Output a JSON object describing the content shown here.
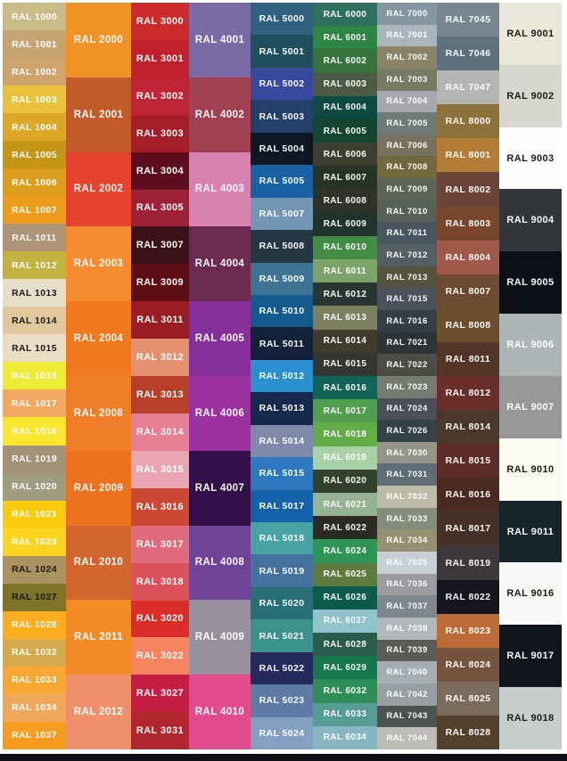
{
  "chart": {
    "footer_bar_color": "#0d0f14",
    "label_light_color": "#ffffff",
    "label_dark_color": "#1d1b16",
    "columns": [
      {
        "name": "ral-1000-series",
        "swatches": [
          {
            "code": "RAL 1000",
            "hex": "#c9bc87"
          },
          {
            "code": "RAL 1001",
            "hex": "#c7a572"
          },
          {
            "code": "RAL 1002",
            "hex": "#cda46c"
          },
          {
            "code": "RAL 1003",
            "hex": "#eac23a"
          },
          {
            "code": "RAL 1004",
            "hex": "#dda826"
          },
          {
            "code": "RAL 1005",
            "hex": "#c39715"
          },
          {
            "code": "RAL 1006",
            "hex": "#de9e1d"
          },
          {
            "code": "RAL 1007",
            "hex": "#ee9c1c"
          },
          {
            "code": "RAL 1011",
            "hex": "#ad9477"
          },
          {
            "code": "RAL 1012",
            "hex": "#c3b23f"
          },
          {
            "code": "RAL 1013",
            "hex": "#e7dec7",
            "dark_text": true
          },
          {
            "code": "RAL 1014",
            "hex": "#e0c79d",
            "dark_text": true
          },
          {
            "code": "RAL 1015",
            "hex": "#e9ddc5",
            "dark_text": true
          },
          {
            "code": "RAL 1016",
            "hex": "#ecec35"
          },
          {
            "code": "RAL 1017",
            "hex": "#f3a860"
          },
          {
            "code": "RAL 1018",
            "hex": "#f9e72f"
          },
          {
            "code": "RAL 1019",
            "hex": "#a39178"
          },
          {
            "code": "RAL 1020",
            "hex": "#a09c80"
          },
          {
            "code": "RAL 1021",
            "hex": "#fbcc0b"
          },
          {
            "code": "RAL 1023",
            "hex": "#fdd41f"
          },
          {
            "code": "RAL 1024",
            "hex": "#ab9360",
            "dark_text": true
          },
          {
            "code": "RAL 1027",
            "hex": "#7e7428",
            "dark_text": true
          },
          {
            "code": "RAL 1028",
            "hex": "#fdae20"
          },
          {
            "code": "RAL 1032",
            "hex": "#d4aa4d"
          },
          {
            "code": "RAL 1033",
            "hex": "#f7a832"
          },
          {
            "code": "RAL 1034",
            "hex": "#f1a75b"
          },
          {
            "code": "RAL 1037",
            "hex": "#f69c1f"
          }
        ]
      },
      {
        "name": "ral-2000-series",
        "swatches": [
          {
            "code": "RAL 2000",
            "hex": "#f09225"
          },
          {
            "code": "RAL 2001",
            "hex": "#c35a2a"
          },
          {
            "code": "RAL 2002",
            "hex": "#e6432e"
          },
          {
            "code": "RAL 2003",
            "hex": "#f68c2f"
          },
          {
            "code": "RAL 2004",
            "hex": "#f0781f"
          },
          {
            "code": "RAL 2008",
            "hex": "#f07d27"
          },
          {
            "code": "RAL 2009",
            "hex": "#ed7220"
          },
          {
            "code": "RAL 2010",
            "hex": "#d2662e"
          },
          {
            "code": "RAL 2011",
            "hex": "#f28b26"
          },
          {
            "code": "RAL 2012",
            "hex": "#ef906a"
          }
        ]
      },
      {
        "name": "ral-3000-series",
        "swatches": [
          {
            "code": "RAL 3000",
            "hex": "#cc2a2c"
          },
          {
            "code": "RAL 3001",
            "hex": "#c1202d"
          },
          {
            "code": "RAL 3002",
            "hex": "#c12434"
          },
          {
            "code": "RAL 3003",
            "hex": "#a41f28"
          },
          {
            "code": "RAL 3004",
            "hex": "#5d0e1c"
          },
          {
            "code": "RAL 3005",
            "hex": "#9e2136"
          },
          {
            "code": "RAL 3007",
            "hex": "#3b121a"
          },
          {
            "code": "RAL 3009",
            "hex": "#5d0f15"
          },
          {
            "code": "RAL 3011",
            "hex": "#9c1c24"
          },
          {
            "code": "RAL 3012",
            "hex": "#e5906f"
          },
          {
            "code": "RAL 3013",
            "hex": "#b8402a"
          },
          {
            "code": "RAL 3014",
            "hex": "#e67f93"
          },
          {
            "code": "RAL 3015",
            "hex": "#e9a6b2"
          },
          {
            "code": "RAL 3016",
            "hex": "#cb4832"
          },
          {
            "code": "RAL 3017",
            "hex": "#e26a7d"
          },
          {
            "code": "RAL 3018",
            "hex": "#dd5158"
          },
          {
            "code": "RAL 3020",
            "hex": "#da2c28"
          },
          {
            "code": "RAL 3022",
            "hex": "#f5845f"
          },
          {
            "code": "RAL 3027",
            "hex": "#c61e42"
          },
          {
            "code": "RAL 3031",
            "hex": "#b2262e"
          }
        ]
      },
      {
        "name": "ral-4000-series",
        "swatches": [
          {
            "code": "RAL 4001",
            "hex": "#7a6aa5"
          },
          {
            "code": "RAL 4002",
            "hex": "#a33f52"
          },
          {
            "code": "RAL 4003",
            "hex": "#d881ae"
          },
          {
            "code": "RAL 4004",
            "hex": "#6d2b52"
          },
          {
            "code": "RAL 4005",
            "hex": "#872f9a"
          },
          {
            "code": "RAL 4006",
            "hex": "#9c32a0"
          },
          {
            "code": "RAL 4007",
            "hex": "#331049"
          },
          {
            "code": "RAL 4008",
            "hex": "#6f4398"
          },
          {
            "code": "RAL 4009",
            "hex": "#97909c"
          },
          {
            "code": "RAL 4010",
            "hex": "#e24b8d"
          }
        ]
      },
      {
        "name": "ral-5000-series",
        "swatches": [
          {
            "code": "RAL 5000",
            "hex": "#30627f"
          },
          {
            "code": "RAL 5001",
            "hex": "#1f4f5c"
          },
          {
            "code": "RAL 5002",
            "hex": "#38499e"
          },
          {
            "code": "RAL 5003",
            "hex": "#23406b"
          },
          {
            "code": "RAL 5004",
            "hex": "#0e1724"
          },
          {
            "code": "RAL 5005",
            "hex": "#1a60a5"
          },
          {
            "code": "RAL 5007",
            "hex": "#7496b5"
          },
          {
            "code": "RAL 5008",
            "hex": "#243743"
          },
          {
            "code": "RAL 5009",
            "hex": "#3f7394"
          },
          {
            "code": "RAL 5010",
            "hex": "#155a8c"
          },
          {
            "code": "RAL 5011",
            "hex": "#13223a"
          },
          {
            "code": "RAL 5012",
            "hex": "#2b90cf"
          },
          {
            "code": "RAL 5013",
            "hex": "#152a4e"
          },
          {
            "code": "RAL 5014",
            "hex": "#8089ac"
          },
          {
            "code": "RAL 5015",
            "hex": "#2e78c0"
          },
          {
            "code": "RAL 5017",
            "hex": "#1562ab"
          },
          {
            "code": "RAL 5018",
            "hex": "#47a2a4"
          },
          {
            "code": "RAL 5019",
            "hex": "#44719e"
          },
          {
            "code": "RAL 5020",
            "hex": "#276e75"
          },
          {
            "code": "RAL 5021",
            "hex": "#3b938b"
          },
          {
            "code": "RAL 5022",
            "hex": "#24295e"
          },
          {
            "code": "RAL 5023",
            "hex": "#5e7ba6"
          },
          {
            "code": "RAL 5024",
            "hex": "#83a0c2"
          }
        ]
      },
      {
        "name": "ral-6000-series",
        "swatches": [
          {
            "code": "RAL 6000",
            "hex": "#2e6f5e"
          },
          {
            "code": "RAL 6001",
            "hex": "#2e8644"
          },
          {
            "code": "RAL 6002",
            "hex": "#38723d"
          },
          {
            "code": "RAL 6003",
            "hex": "#4d5a44"
          },
          {
            "code": "RAL 6004",
            "hex": "#0e4a44"
          },
          {
            "code": "RAL 6005",
            "hex": "#134531"
          },
          {
            "code": "RAL 6006",
            "hex": "#3c3e30"
          },
          {
            "code": "RAL 6007",
            "hex": "#273324"
          },
          {
            "code": "RAL 6008",
            "hex": "#31332b"
          },
          {
            "code": "RAL 6009",
            "hex": "#21342b"
          },
          {
            "code": "RAL 6010",
            "hex": "#428c44"
          },
          {
            "code": "RAL 6011",
            "hex": "#7ca36a"
          },
          {
            "code": "RAL 6012",
            "hex": "#283734"
          },
          {
            "code": "RAL 6013",
            "hex": "#7d805f"
          },
          {
            "code": "RAL 6014",
            "hex": "#3f3c2d"
          },
          {
            "code": "RAL 6015",
            "hex": "#343730"
          },
          {
            "code": "RAL 6016",
            "hex": "#116456"
          },
          {
            "code": "RAL 6017",
            "hex": "#4f9e4b"
          },
          {
            "code": "RAL 6018",
            "hex": "#62ad47"
          },
          {
            "code": "RAL 6019",
            "hex": "#a8d2a5"
          },
          {
            "code": "RAL 6020",
            "hex": "#33412f"
          },
          {
            "code": "RAL 6021",
            "hex": "#94b390"
          },
          {
            "code": "RAL 6022",
            "hex": "#2b2b23"
          },
          {
            "code": "RAL 6024",
            "hex": "#2d9555"
          },
          {
            "code": "RAL 6025",
            "hex": "#5f7c40"
          },
          {
            "code": "RAL 6026",
            "hex": "#0d5b4d"
          },
          {
            "code": "RAL 6027",
            "hex": "#8fc4ca"
          },
          {
            "code": "RAL 6028",
            "hex": "#2b5b4d"
          },
          {
            "code": "RAL 6029",
            "hex": "#16774c"
          },
          {
            "code": "RAL 6032",
            "hex": "#2f8e58"
          },
          {
            "code": "RAL 6033",
            "hex": "#569b94"
          },
          {
            "code": "RAL 6034",
            "hex": "#85b6c1"
          }
        ]
      },
      {
        "name": "ral-7000-series",
        "swatches": [
          {
            "code": "RAL 7000",
            "hex": "#8396a2"
          },
          {
            "code": "RAL 7001",
            "hex": "#abb5bd"
          },
          {
            "code": "RAL 7002",
            "hex": "#8b8367"
          },
          {
            "code": "RAL 7003",
            "hex": "#777b66"
          },
          {
            "code": "RAL 7004",
            "hex": "#a7a7af"
          },
          {
            "code": "RAL 7005",
            "hex": "#6f7b78"
          },
          {
            "code": "RAL 7006",
            "hex": "#78715e"
          },
          {
            "code": "RAL 7008",
            "hex": "#73673d"
          },
          {
            "code": "RAL 7009",
            "hex": "#5b6455"
          },
          {
            "code": "RAL 7010",
            "hex": "#566056"
          },
          {
            "code": "RAL 7011",
            "hex": "#48555e"
          },
          {
            "code": "RAL 7012",
            "hex": "#545f64"
          },
          {
            "code": "RAL 7013",
            "hex": "#55523d"
          },
          {
            "code": "RAL 7015",
            "hex": "#4b515d"
          },
          {
            "code": "RAL 7016",
            "hex": "#343e45"
          },
          {
            "code": "RAL 7021",
            "hex": "#2c3438"
          },
          {
            "code": "RAL 7022",
            "hex": "#4c4c45"
          },
          {
            "code": "RAL 7023",
            "hex": "#757b6f"
          },
          {
            "code": "RAL 7024",
            "hex": "#4c4e59"
          },
          {
            "code": "RAL 7026",
            "hex": "#344149"
          },
          {
            "code": "RAL 7030",
            "hex": "#949489"
          },
          {
            "code": "RAL 7031",
            "hex": "#5d6c75"
          },
          {
            "code": "RAL 7032",
            "hex": "#bdbba6"
          },
          {
            "code": "RAL 7033",
            "hex": "#848c7b"
          },
          {
            "code": "RAL 7034",
            "hex": "#968f70"
          },
          {
            "code": "RAL 7035",
            "hex": "#c6cfd5"
          },
          {
            "code": "RAL 7036",
            "hex": "#9b9b9f"
          },
          {
            "code": "RAL 7037",
            "hex": "#7f878e"
          },
          {
            "code": "RAL 7038",
            "hex": "#b1b8bc"
          },
          {
            "code": "RAL 7039",
            "hex": "#5c5c56"
          },
          {
            "code": "RAL 7040",
            "hex": "#a4acb4"
          },
          {
            "code": "RAL 7042",
            "hex": "#979fa2"
          },
          {
            "code": "RAL 7043",
            "hex": "#4c534f"
          },
          {
            "code": "RAL 7044",
            "hex": "#bbbdb6"
          }
        ]
      },
      {
        "name": "ral-7045-8000-series",
        "swatches": [
          {
            "code": "RAL 7045",
            "hex": "#77868f"
          },
          {
            "code": "RAL 7046",
            "hex": "#5f717c"
          },
          {
            "code": "RAL 7047",
            "hex": "#b5b4b2"
          },
          {
            "code": "RAL 8000",
            "hex": "#8d723c"
          },
          {
            "code": "RAL 8001",
            "hex": "#b27b36"
          },
          {
            "code": "RAL 8002",
            "hex": "#6c4539"
          },
          {
            "code": "RAL 8003",
            "hex": "#77462b"
          },
          {
            "code": "RAL 8004",
            "hex": "#a15949"
          },
          {
            "code": "RAL 8007",
            "hex": "#6c4b30"
          },
          {
            "code": "RAL 8008",
            "hex": "#6f4e2d"
          },
          {
            "code": "RAL 8011",
            "hex": "#533627"
          },
          {
            "code": "RAL 8012",
            "hex": "#6b2f2b"
          },
          {
            "code": "RAL 8014",
            "hex": "#4a392b"
          },
          {
            "code": "RAL 8015",
            "hex": "#5f2d28"
          },
          {
            "code": "RAL 8016",
            "hex": "#4b2b21"
          },
          {
            "code": "RAL 8017",
            "hex": "#453127"
          },
          {
            "code": "RAL 8019",
            "hex": "#3d383b"
          },
          {
            "code": "RAL 8022",
            "hex": "#141521"
          },
          {
            "code": "RAL 8023",
            "hex": "#bc6b34"
          },
          {
            "code": "RAL 8024",
            "hex": "#75533d"
          },
          {
            "code": "RAL 8025",
            "hex": "#7b6b5c"
          },
          {
            "code": "RAL 8028",
            "hex": "#54412d"
          }
        ]
      },
      {
        "name": "ral-9000-series",
        "swatches": [
          {
            "code": "RAL 9001",
            "hex": "#e8e7d9",
            "dark_text": true
          },
          {
            "code": "RAL 9002",
            "hex": "#d8d7cf",
            "dark_text": true
          },
          {
            "code": "RAL 9003",
            "hex": "#fefefe",
            "dark_text": true
          },
          {
            "code": "RAL 9004",
            "hex": "#33373b"
          },
          {
            "code": "RAL 9005",
            "hex": "#0c0f18"
          },
          {
            "code": "RAL 9006",
            "hex": "#aeb5b7"
          },
          {
            "code": "RAL 9007",
            "hex": "#979998"
          },
          {
            "code": "RAL 9010",
            "hex": "#fcfbf1",
            "dark_text": true
          },
          {
            "code": "RAL 9011",
            "hex": "#16242c"
          },
          {
            "code": "RAL 9016",
            "hex": "#f8f9f7",
            "dark_text": true
          },
          {
            "code": "RAL 9017",
            "hex": "#11141d"
          },
          {
            "code": "RAL 9018",
            "hex": "#c7cccc",
            "dark_text": true
          }
        ]
      }
    ]
  }
}
